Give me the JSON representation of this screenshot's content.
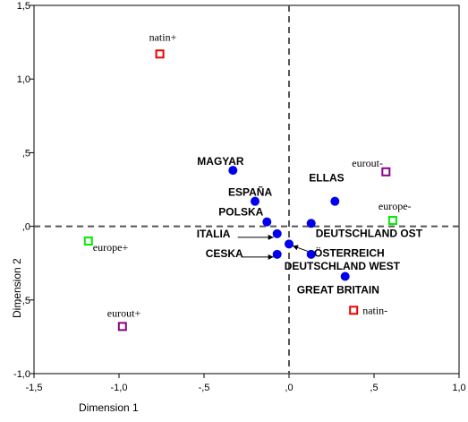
{
  "chart_data": {
    "type": "scatter",
    "xlabel": "Dimension 1",
    "ylabel": "Dimension 2",
    "xlim": [
      -1.5,
      1.0
    ],
    "ylim": [
      -1.0,
      1.5
    ],
    "xticks": [
      -1.5,
      -1.0,
      -0.5,
      0.0,
      0.5,
      1.0
    ],
    "xtick_labels": [
      "-1,5",
      "-1,0",
      "-,5",
      ",0",
      ",5",
      "1,0"
    ],
    "yticks": [
      -1.0,
      -0.5,
      0.0,
      0.5,
      1.0,
      1.5
    ],
    "ytick_labels": [
      "-1,0",
      "-,5",
      ",0",
      ",5",
      "1,0",
      "1,5"
    ],
    "reference_lines": {
      "x": 0.0,
      "y": 0.0,
      "style": "dashed"
    },
    "series": [
      {
        "name": "",
        "marker": "filled-circle",
        "color": "#0000ee",
        "points": [
          {
            "label": "MAGYAR",
            "x": -0.33,
            "y": 0.38
          },
          {
            "label": "ESPAÑA",
            "x": -0.2,
            "y": 0.17
          },
          {
            "label": "POLSKA",
            "x": -0.13,
            "y": 0.03
          },
          {
            "label": "ITALIA",
            "x": -0.07,
            "y": -0.05
          },
          {
            "label": "CESKA",
            "x": -0.07,
            "y": -0.19
          },
          {
            "label": "ÖSTERREICH",
            "x": 0.0,
            "y": -0.12
          },
          {
            "label": "DEUTSCHLAND OST",
            "x": 0.13,
            "y": 0.02
          },
          {
            "label": "DEUTSCHLAND WEST",
            "x": 0.13,
            "y": -0.19
          },
          {
            "label": "ELLAS",
            "x": 0.27,
            "y": 0.17
          },
          {
            "label": "GREAT BRITAIN",
            "x": 0.33,
            "y": -0.34
          }
        ]
      },
      {
        "name": "",
        "marker": "open-square",
        "color": "#ee0000",
        "points": [
          {
            "label": "natin+",
            "x": -0.76,
            "y": 1.17
          },
          {
            "label": "natin-",
            "x": 0.38,
            "y": -0.57
          }
        ]
      },
      {
        "name": "",
        "marker": "open-square",
        "color": "#00ee00",
        "points": [
          {
            "label": "europe+",
            "x": -1.18,
            "y": -0.1
          },
          {
            "label": "europe-",
            "x": 0.61,
            "y": 0.04
          }
        ]
      },
      {
        "name": "",
        "marker": "open-square",
        "color": "#880088",
        "points": [
          {
            "label": "eurout+",
            "x": -0.98,
            "y": -0.68
          },
          {
            "label": "eurout-",
            "x": 0.57,
            "y": 0.37
          }
        ]
      }
    ]
  }
}
